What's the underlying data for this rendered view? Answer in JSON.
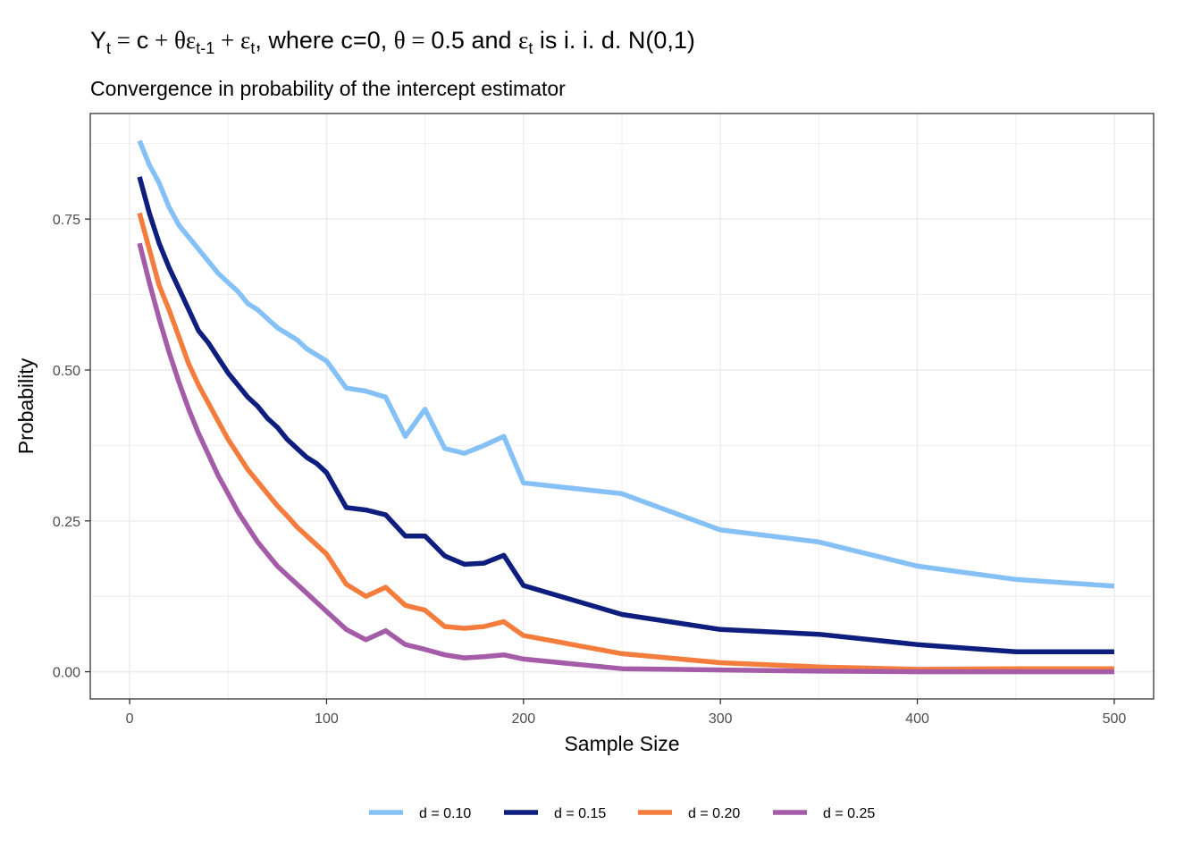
{
  "title": {
    "y": "Y",
    "y_sub": "t",
    "eq1": " = ",
    "c": "c",
    "plus1": " + ",
    "theta_eps": "θε",
    "eps_sub1": "t-1",
    "plus2": " + ",
    "eps": "ε",
    "eps_sub2": "t",
    "text1": ", where c=0, ",
    "theta": "θ",
    "eq2": " = ",
    "text2": "0.5 and ",
    "eps3": "ε",
    "eps_sub3": "t",
    "text3": " is i. i. d. N(0,1)"
  },
  "subtitle": "Convergence in probability of the intercept estimator",
  "colors": {
    "d010": "#85c1f7",
    "d015": "#0e1e7e",
    "d020": "#f47c3c",
    "d025": "#a55ca8",
    "grid": "#ebebeb",
    "panel_border": "#333333"
  },
  "chart_data": {
    "type": "line",
    "xlabel": "Sample Size",
    "ylabel": "Probability",
    "xlim": [
      -20,
      520
    ],
    "ylim": [
      -0.045,
      0.925
    ],
    "x_ticks": [
      0,
      100,
      200,
      300,
      400,
      500
    ],
    "x_tick_labels": [
      "0",
      "100",
      "200",
      "300",
      "400",
      "500"
    ],
    "y_ticks": [
      0,
      0.25,
      0.5,
      0.75
    ],
    "y_tick_labels": [
      "0.00",
      "0.25",
      "0.50",
      "0.75"
    ],
    "grid": true,
    "legend_position": "bottom",
    "x": [
      5,
      10,
      15,
      20,
      25,
      30,
      35,
      40,
      45,
      50,
      55,
      60,
      65,
      70,
      75,
      80,
      85,
      90,
      95,
      100,
      110,
      120,
      130,
      140,
      150,
      160,
      170,
      180,
      190,
      200,
      250,
      300,
      350,
      400,
      450,
      500
    ],
    "series": [
      {
        "name": "d = 0.10",
        "values": [
          0.88,
          0.84,
          0.81,
          0.77,
          0.74,
          0.72,
          0.7,
          0.68,
          0.66,
          0.645,
          0.63,
          0.61,
          0.6,
          0.585,
          0.57,
          0.56,
          0.55,
          0.535,
          0.525,
          0.515,
          0.47,
          0.465,
          0.455,
          0.39,
          0.435,
          0.37,
          0.362,
          0.375,
          0.39,
          0.313,
          0.295,
          0.235,
          0.215,
          0.175,
          0.153,
          0.142
        ]
      },
      {
        "name": "d = 0.15",
        "values": [
          0.82,
          0.76,
          0.71,
          0.67,
          0.635,
          0.6,
          0.565,
          0.545,
          0.52,
          0.495,
          0.475,
          0.455,
          0.44,
          0.42,
          0.405,
          0.385,
          0.37,
          0.355,
          0.345,
          0.33,
          0.272,
          0.268,
          0.26,
          0.225,
          0.225,
          0.192,
          0.178,
          0.18,
          0.193,
          0.143,
          0.095,
          0.07,
          0.062,
          0.045,
          0.033,
          0.033
        ]
      },
      {
        "name": "d = 0.20",
        "values": [
          0.76,
          0.7,
          0.64,
          0.6,
          0.555,
          0.51,
          0.475,
          0.445,
          0.415,
          0.385,
          0.36,
          0.335,
          0.315,
          0.295,
          0.275,
          0.258,
          0.24,
          0.225,
          0.21,
          0.195,
          0.145,
          0.125,
          0.14,
          0.11,
          0.102,
          0.075,
          0.072,
          0.075,
          0.083,
          0.06,
          0.03,
          0.015,
          0.008,
          0.004,
          0.005,
          0.005
        ]
      },
      {
        "name": "d = 0.25",
        "values": [
          0.71,
          0.645,
          0.585,
          0.53,
          0.48,
          0.435,
          0.395,
          0.36,
          0.325,
          0.295,
          0.265,
          0.24,
          0.215,
          0.195,
          0.175,
          0.16,
          0.145,
          0.13,
          0.115,
          0.1,
          0.07,
          0.053,
          0.068,
          0.045,
          0.037,
          0.028,
          0.023,
          0.025,
          0.028,
          0.021,
          0.005,
          0.003,
          0.001,
          0.0,
          0.0,
          0.0
        ]
      }
    ]
  }
}
